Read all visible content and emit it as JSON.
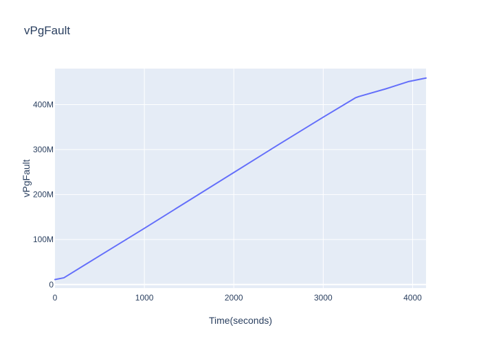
{
  "chart_data": {
    "type": "line",
    "title": "vPgFault",
    "xlabel": "Time(seconds)",
    "ylabel": "vPgFault",
    "xlim": [
      0,
      4150
    ],
    "ylim": [
      -8000000,
      480000000
    ],
    "x_ticks": [
      0,
      1000,
      2000,
      3000,
      4000
    ],
    "x_tick_labels": [
      "0",
      "1000",
      "2000",
      "3000",
      "4000"
    ],
    "y_ticks": [
      0,
      100000000,
      200000000,
      300000000,
      400000000
    ],
    "y_tick_labels": [
      "0",
      "100M",
      "200M",
      "300M",
      "400M"
    ],
    "grid": true,
    "legend": false,
    "plot_background": "#e5ecf6",
    "gridline_color": "#ffffff",
    "series": [
      {
        "color": "#636efa",
        "x": [
          0,
          100,
          500,
          1000,
          1500,
          2000,
          2500,
          3000,
          3360,
          3400,
          3700,
          3950,
          4150
        ],
        "y": [
          11000000,
          15000000,
          64000000,
          125000000,
          187000000,
          249000000,
          311000000,
          372000000,
          415000000,
          418000000,
          435000000,
          451000000,
          459000000
        ]
      }
    ]
  }
}
